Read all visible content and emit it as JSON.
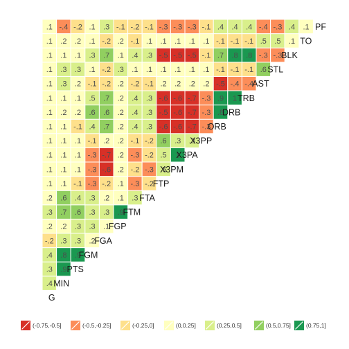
{
  "chart_data": {
    "type": "heatmap",
    "variables": [
      "G",
      "MIN",
      "PTS",
      "FGM",
      "FGA",
      "FGP",
      "FTM",
      "FTA",
      "FTP",
      "X3PM",
      "X3PA",
      "X3PP",
      "ORB",
      "DRB",
      "TRB",
      "AST",
      "STL",
      "BLK",
      "TO",
      "PF"
    ],
    "rows": [
      {
        "var": "MIN",
        "values": [
          0.4
        ]
      },
      {
        "var": "PTS",
        "values": [
          0.3,
          0.9
        ]
      },
      {
        "var": "FGM",
        "values": [
          0.4,
          0.8,
          0.9
        ]
      },
      {
        "var": "FGA",
        "values": [
          -0.2,
          0.3,
          0.3,
          0.2
        ]
      },
      {
        "var": "FGP",
        "values": [
          0.2,
          0.2,
          0.3,
          0.3,
          0.1
        ]
      },
      {
        "var": "FTM",
        "values": [
          0.3,
          0.7,
          0.6,
          0.3,
          0.3,
          0.9
        ]
      },
      {
        "var": "FTA",
        "values": [
          0.2,
          0.6,
          0.4,
          0.3,
          0.2,
          0.1,
          0.3
        ]
      },
      {
        "var": "FTP",
        "values": [
          0.1,
          0.1,
          -0.1,
          -0.3,
          -0.2,
          0.1,
          -0.3,
          -0.2
        ]
      },
      {
        "var": "X3PM",
        "values": [
          0.1,
          0.1,
          0.1,
          -0.3,
          -0.6,
          0.2,
          -0.2,
          -0.3,
          0.5
        ]
      },
      {
        "var": "X3PA",
        "values": [
          0.1,
          0.1,
          0.1,
          -0.3,
          -0.7,
          0.2,
          -0.3,
          -0.2,
          0.5,
          1
        ]
      },
      {
        "var": "X3PP",
        "values": [
          0.1,
          0.1,
          0.1,
          -0.1,
          0.2,
          0.2,
          -0.1,
          -0.2,
          0.6,
          0.3,
          0.3
        ]
      },
      {
        "var": "ORB",
        "values": [
          0.1,
          0.1,
          -0.1,
          0.4,
          0.7,
          0.2,
          0.4,
          0.3,
          -0.6,
          -0.6,
          -0.7,
          -0.3
        ]
      },
      {
        "var": "DRB",
        "values": [
          0.1,
          0.2,
          0.2,
          0.6,
          0.6,
          0.2,
          0.4,
          0.3,
          -0.5,
          -0.6,
          -0.7,
          -0.3,
          0.8
        ]
      },
      {
        "var": "TRB",
        "values": [
          0.1,
          0.1,
          0.1,
          0.5,
          0.7,
          0.2,
          0.4,
          0.3,
          -0.6,
          -0.6,
          -0.7,
          -0.3,
          0.9,
          1
        ]
      },
      {
        "var": "AST",
        "values": [
          0.1,
          0.3,
          0.2,
          -0.1,
          -0.2,
          0.2,
          -0.2,
          -0.1,
          0.2,
          0.2,
          0.2,
          0.2,
          -0.5,
          -0.4,
          -0.4
        ]
      },
      {
        "var": "STL",
        "values": [
          0.1,
          0.3,
          0.3,
          0.1,
          -0.2,
          0.3,
          0.1,
          0.1,
          0.1,
          0.1,
          0.1,
          0.1,
          -0.1,
          -0.1,
          -0.1,
          0.6
        ]
      },
      {
        "var": "BLK",
        "values": [
          0.1,
          0.1,
          0.1,
          0.3,
          0.7,
          0.1,
          0.4,
          0.3,
          -0.5,
          -0.5,
          -0.5,
          -0.1,
          0.7,
          0.8,
          0.8,
          -0.3,
          -0.3
        ]
      },
      {
        "var": "TO",
        "values": [
          0.1,
          0.2,
          0.2,
          0.1,
          -0.2,
          0.2,
          -0.1,
          0.1,
          0.1,
          0.1,
          0.1,
          0.1,
          -0.1,
          -0.1,
          -0.1,
          0.5,
          0.5,
          0.1
        ]
      },
      {
        "var": "PF",
        "values": [
          0.1,
          -0.4,
          -0.2,
          0.1,
          0.3,
          -0.1,
          -0.2,
          -0.1,
          -0.3,
          -0.3,
          -0.3,
          -0.1,
          0.4,
          0.4,
          0.4,
          -0.4,
          -0.3,
          0.4,
          0.1
        ]
      }
    ],
    "legend": {
      "placement": "bottom",
      "bins": [
        {
          "label": "(-0.75,-0.5]",
          "color": "#d73027"
        },
        {
          "label": "(-0.5,-0.25]",
          "color": "#fc8d59"
        },
        {
          "label": "(-0.25,0]",
          "color": "#fee08b"
        },
        {
          "label": "(0,0.25]",
          "color": "#ffffbf"
        },
        {
          "label": "(0.25,0.5]",
          "color": "#d9ef8b"
        },
        {
          "label": "(0.5,0.75]",
          "color": "#91cf60"
        },
        {
          "label": "(0.75,1]",
          "color": "#1a9850"
        }
      ]
    },
    "title": "",
    "xlabel": "",
    "ylabel": "",
    "grid": false
  }
}
